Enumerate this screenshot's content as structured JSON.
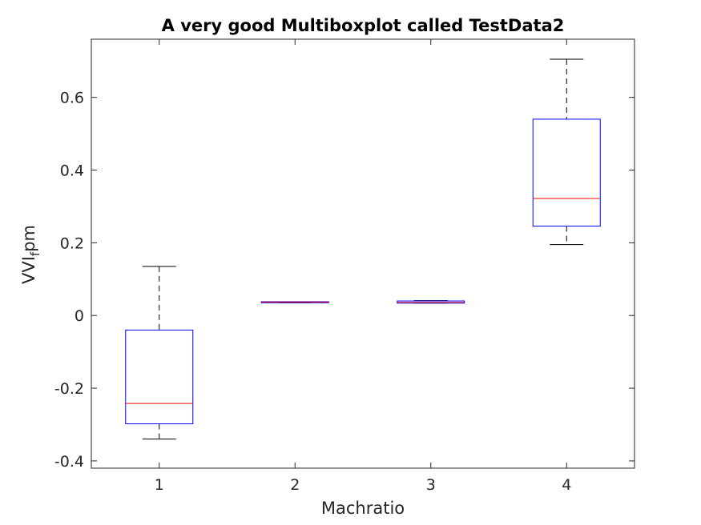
{
  "chart_data": {
    "type": "box",
    "title": "A very good Multiboxplot called TestData2",
    "xlabel": "Machratio",
    "ylabel": {
      "main": "VVI",
      "subscript": "f",
      "suffix": "pm"
    },
    "categories": [
      "1",
      "2",
      "3",
      "4"
    ],
    "xlim": [
      0.5,
      4.5
    ],
    "ylim": [
      -0.42,
      0.76
    ],
    "yticks": [
      -0.4,
      -0.2,
      0,
      0.2,
      0.4,
      0.6
    ],
    "ytick_labels": [
      "-0.4",
      "-0.2",
      "0",
      "0.2",
      "0.4",
      "0.6"
    ],
    "grid": false,
    "legend": false,
    "boxes": [
      {
        "category": "1",
        "whisker_low": -0.34,
        "q1": -0.298,
        "median": -0.242,
        "q3": -0.04,
        "whisker_high": 0.135
      },
      {
        "category": "2",
        "whisker_low": 0.035,
        "q1": 0.035,
        "median": 0.037,
        "q3": 0.038,
        "whisker_high": 0.038
      },
      {
        "category": "3",
        "whisker_low": 0.034,
        "q1": 0.034,
        "median": 0.036,
        "q3": 0.04,
        "whisker_high": 0.041
      },
      {
        "category": "4",
        "whisker_low": 0.195,
        "q1": 0.246,
        "median": 0.322,
        "q3": 0.54,
        "whisker_high": 0.705
      }
    ],
    "colors": {
      "box": "#0000ff",
      "median": "#ff0000",
      "whisker": "#000000",
      "axes": "#262626"
    }
  }
}
